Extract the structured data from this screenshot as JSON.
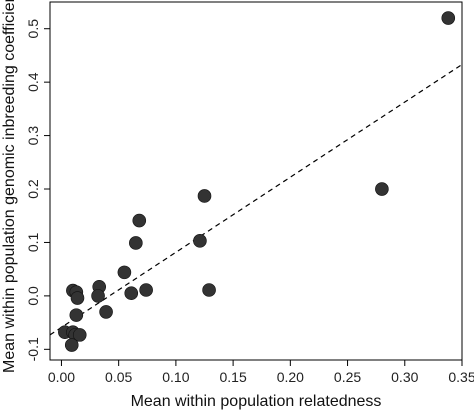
{
  "chart_data": {
    "type": "scatter",
    "title": "",
    "xlabel": "Mean within population relatedness",
    "ylabel": "Mean within population genomic inbreeding coefficient",
    "xlim": [
      -0.01,
      0.35
    ],
    "ylim": [
      -0.12,
      0.55
    ],
    "xticks": [
      0.0,
      0.05,
      0.1,
      0.15,
      0.2,
      0.25,
      0.3,
      0.35
    ],
    "xtick_labels": [
      "0.00",
      "0.05",
      "0.10",
      "0.15",
      "0.20",
      "0.25",
      "0.30",
      "0.35"
    ],
    "yticks": [
      -0.1,
      0.0,
      0.1,
      0.2,
      0.3,
      0.4,
      0.5
    ],
    "ytick_labels": [
      "-0.1",
      "0.0",
      "0.1",
      "0.2",
      "0.3",
      "0.4",
      "0.5"
    ],
    "grid": false,
    "points": [
      {
        "x": 0.338,
        "y": 0.52
      },
      {
        "x": 0.28,
        "y": 0.2
      },
      {
        "x": 0.125,
        "y": 0.187
      },
      {
        "x": 0.129,
        "y": 0.011
      },
      {
        "x": 0.121,
        "y": 0.103
      },
      {
        "x": 0.068,
        "y": 0.141
      },
      {
        "x": 0.065,
        "y": 0.099
      },
      {
        "x": 0.074,
        "y": 0.011
      },
      {
        "x": 0.061,
        "y": 0.005
      },
      {
        "x": 0.055,
        "y": 0.044
      },
      {
        "x": 0.033,
        "y": 0.017
      },
      {
        "x": 0.032,
        "y": 0.0
      },
      {
        "x": 0.039,
        "y": -0.03
      },
      {
        "x": 0.01,
        "y": 0.01
      },
      {
        "x": 0.013,
        "y": 0.007
      },
      {
        "x": 0.014,
        "y": -0.004
      },
      {
        "x": 0.013,
        "y": -0.036
      },
      {
        "x": 0.003,
        "y": -0.068
      },
      {
        "x": 0.01,
        "y": -0.068
      },
      {
        "x": 0.012,
        "y": -0.073
      },
      {
        "x": 0.016,
        "y": -0.073
      },
      {
        "x": 0.009,
        "y": -0.092
      }
    ],
    "regression_line": {
      "style": "dashed",
      "x": [
        -0.01,
        0.35
      ],
      "y": [
        -0.073,
        0.433
      ]
    },
    "marker_color": "#333333",
    "line_color": "#000000"
  }
}
